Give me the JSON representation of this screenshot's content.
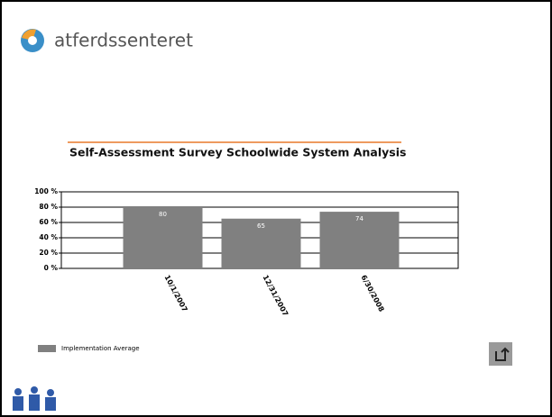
{
  "header": {
    "logo_text": "atferdssenteret"
  },
  "chart_data": {
    "type": "bar",
    "title": "Self-Assessment Survey Schoolwide System Analysis",
    "categories": [
      "10/1/2007",
      "12/31/2007",
      "6/30/2008"
    ],
    "series": [
      {
        "name": "Implementation Average",
        "color": "#808080",
        "values": [
          80,
          65,
          74
        ]
      }
    ],
    "ylim": [
      0,
      100
    ],
    "yticks": [
      {
        "value": 0,
        "label": "0 %"
      },
      {
        "value": 20,
        "label": "20 %"
      },
      {
        "value": 40,
        "label": "40 %"
      },
      {
        "value": 60,
        "label": "60 %"
      },
      {
        "value": 80,
        "label": "80 %"
      },
      {
        "value": 100,
        "label": "100 %"
      }
    ],
    "grid": true
  }
}
